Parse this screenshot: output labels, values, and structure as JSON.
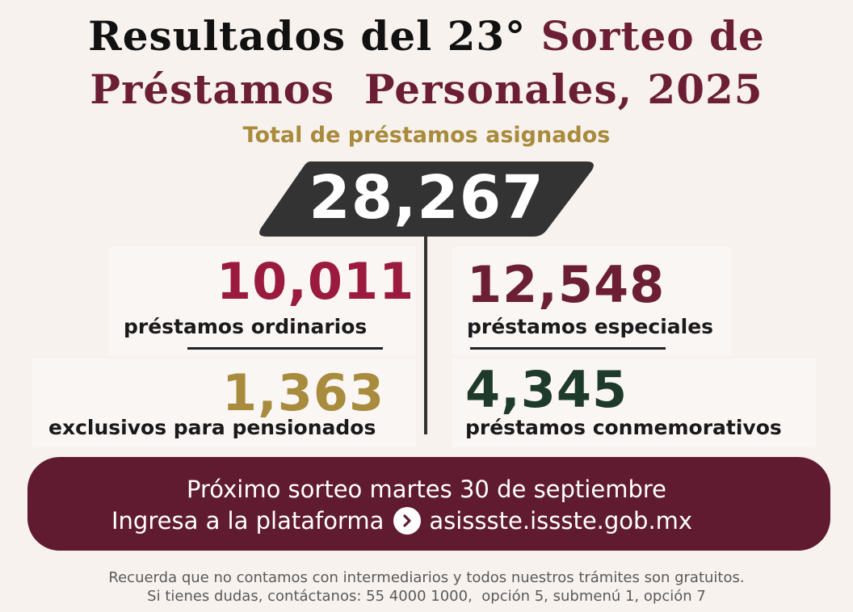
{
  "title": {
    "line1_part1": "Resultados del 23°",
    "line1_part2": "Sorteo de",
    "line2": "Préstamos  Personales, 2025"
  },
  "subtitle": "Total de préstamos asignados",
  "total": "28,267",
  "stats": {
    "ordinarios": {
      "value": "10,011",
      "label": "préstamos ordinarios",
      "color": "#9b1b3e"
    },
    "especiales": {
      "value": "12,548",
      "label": "préstamos especiales",
      "color": "#6b1e34"
    },
    "pensionados": {
      "value": "1,363",
      "label": "exclusivos para pensionados",
      "color": "#a88b3c"
    },
    "conmemorativos": {
      "value": "4,345",
      "label": "préstamos conmemorativos",
      "color": "#1e3a2a"
    }
  },
  "banner": {
    "line1": "Próximo sorteo martes 30 de septiembre",
    "line2_prefix": "Ingresa a la plataforma",
    "line2_link": "asissste.issste.gob.mx",
    "icon": "chevron-right-circle-icon",
    "bg_color": "#611b31"
  },
  "footer": {
    "line1": "Recuerda que no contamos con intermediarios y todos nuestros trámites son gratuitos.",
    "line2": "Si tienes dudas, contáctanos: 55 4000 1000,  opción 5, submenú 1, opción 7"
  }
}
